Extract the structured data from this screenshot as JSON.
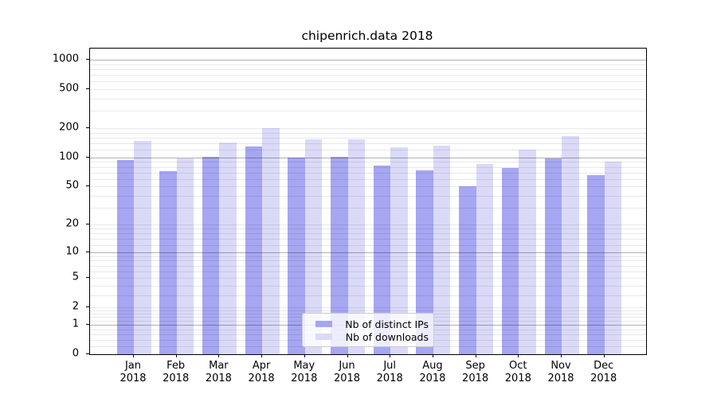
{
  "title": "chipenrich.data 2018",
  "legend": {
    "items": [
      {
        "label": "Nb of distinct IPs",
        "color": "#a6a6f2"
      },
      {
        "label": "Nb of downloads",
        "color": "#dadaf8"
      }
    ]
  },
  "y_axis": {
    "ticks": [
      {
        "label": "1000",
        "value": 1000
      },
      {
        "label": "500",
        "value": 500
      },
      {
        "label": "200",
        "value": 200
      },
      {
        "label": "100",
        "value": 100
      },
      {
        "label": "50",
        "value": 50
      },
      {
        "label": "20",
        "value": 20
      },
      {
        "label": "10",
        "value": 10
      },
      {
        "label": "5",
        "value": 5
      },
      {
        "label": "2",
        "value": 2
      },
      {
        "label": "1",
        "value": 1
      },
      {
        "label": "0",
        "value": 0
      }
    ]
  },
  "x_axis": {
    "year": "2018",
    "months": [
      "Jan",
      "Feb",
      "Mar",
      "Apr",
      "May",
      "Jun",
      "Jul",
      "Aug",
      "Sep",
      "Oct",
      "Nov",
      "Dec"
    ]
  },
  "chart_data": {
    "type": "bar",
    "title": "chipenrich.data 2018",
    "categories": [
      "Jan 2018",
      "Feb 2018",
      "Mar 2018",
      "Apr 2018",
      "May 2018",
      "Jun 2018",
      "Jul 2018",
      "Aug 2018",
      "Sep 2018",
      "Oct 2018",
      "Nov 2018",
      "Dec 2018"
    ],
    "series": [
      {
        "name": "Nb of distinct IPs",
        "color": "#a6a6f2",
        "values": [
          95,
          72,
          102,
          131,
          99,
          102,
          82,
          74,
          50,
          78,
          97,
          66
        ]
      },
      {
        "name": "Nb of downloads",
        "color": "#dadaf8",
        "values": [
          148,
          97,
          143,
          200,
          155,
          155,
          127,
          132,
          85,
          120,
          165,
          90
        ]
      }
    ],
    "xlabel": "",
    "ylabel": "",
    "y_scale": "log1p",
    "ylim": [
      0,
      1300
    ],
    "y_ticks": [
      0,
      1,
      2,
      5,
      10,
      20,
      50,
      100,
      200,
      500,
      1000
    ],
    "grid": "both",
    "grid_major_at": [
      1,
      10,
      100,
      1000
    ],
    "legend_position": "lower-center"
  }
}
